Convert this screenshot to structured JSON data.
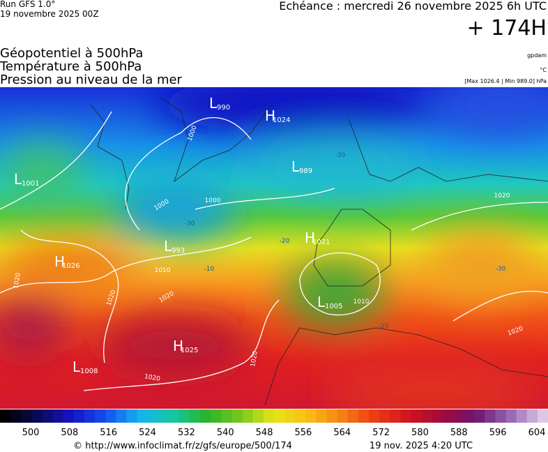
{
  "header": {
    "run": "Run GFS 1.0°",
    "date": "19 novembre 2025 00Z",
    "forecast": "Echéance : mercredi 26 novembre 2025 6h UTC",
    "lead": "+ 174H"
  },
  "fields": [
    "Géopotentiel à 500hPa",
    "Température à 500hPa",
    "Pression au niveau de la mer"
  ],
  "units": {
    "geopotential": "gpdam",
    "temperature": "°C",
    "pressure": "[Max 1026.4 | Min 989.0] hPa"
  },
  "pressure_centers": [
    {
      "type": "L",
      "value": 990
    },
    {
      "type": "H",
      "value": 1024
    },
    {
      "type": "L",
      "value": 989
    },
    {
      "type": "L",
      "value": 1001
    },
    {
      "type": "L",
      "value": 993
    },
    {
      "type": "H",
      "value": 1026
    },
    {
      "type": "H",
      "value": 1021
    },
    {
      "type": "L",
      "value": 1005
    },
    {
      "type": "H",
      "value": 1025
    },
    {
      "type": "L",
      "value": 1008
    }
  ],
  "isobar_labels": [
    1000,
    1000,
    1000,
    1010,
    1020,
    1020,
    1020,
    1020,
    1020,
    1020,
    1020,
    1010
  ],
  "temperature_labels": [
    -30,
    -30,
    -20,
    -10,
    -20,
    -30
  ],
  "colorbar": {
    "labels": [
      500,
      508,
      516,
      524,
      532,
      540,
      548,
      556,
      564,
      572,
      580,
      588,
      596,
      604
    ]
  },
  "footer": {
    "url": "© http://www.infoclimat.fr/z/gfs/europe/500/174",
    "timestamp": "19 nov. 2025  4:20 UTC"
  }
}
